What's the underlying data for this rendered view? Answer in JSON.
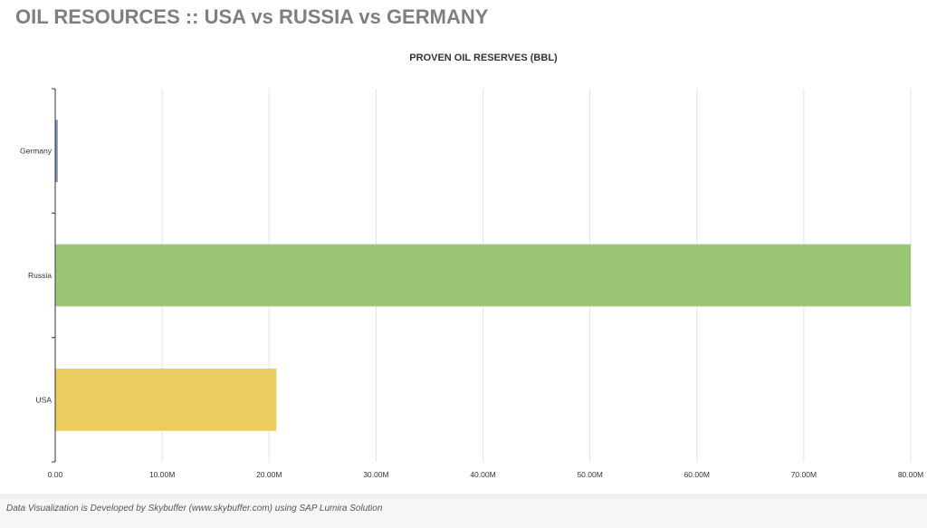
{
  "header": {
    "title": "OIL RESOURCES :: USA vs RUSSIA vs GERMANY"
  },
  "chart_data": {
    "type": "bar",
    "orientation": "horizontal",
    "title": "PROVEN OIL RESERVES (BBL)",
    "xlabel": "",
    "ylabel": "",
    "categories": [
      "Germany",
      "Russia",
      "USA"
    ],
    "values": [
      230000,
      80000000,
      20680000
    ],
    "colors": [
      "#748cb2",
      "#9bc775",
      "#eacd5e"
    ],
    "xlim": [
      0,
      80000000
    ],
    "x_ticks": [
      0,
      10000000,
      20000000,
      30000000,
      40000000,
      50000000,
      60000000,
      70000000,
      80000000
    ],
    "x_tick_labels": [
      "0.00",
      "10.00M",
      "20.00M",
      "30.00M",
      "40.00M",
      "50.00M",
      "60.00M",
      "70.00M",
      "80.00M"
    ],
    "grid": "vertical",
    "legend": "none"
  },
  "footer": {
    "text": "Data Visualization is Developed by Skybuffer (www.skybuffer.com) using SAP Lumira Solution"
  }
}
